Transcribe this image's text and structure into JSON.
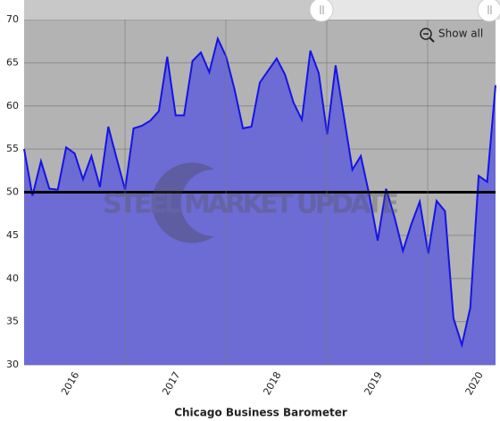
{
  "chart_data": {
    "type": "area",
    "title": "Chicago Business Barometer",
    "watermark": "STEEL MARKET UPDATE",
    "button": "Show all",
    "categories": [
      null,
      null,
      null,
      null,
      null,
      "2016",
      null,
      null,
      null,
      null,
      null,
      null,
      null,
      null,
      null,
      null,
      null,
      "2017",
      null,
      null,
      null,
      null,
      null,
      null,
      null,
      null,
      null,
      null,
      null,
      "2018",
      null,
      null,
      null,
      null,
      null,
      null,
      null,
      null,
      null,
      null,
      null,
      "2019",
      null,
      null,
      null,
      null,
      null,
      null,
      null,
      null,
      null,
      null,
      null,
      "2020",
      null,
      null,
      null
    ],
    "values": [
      55,
      49.6,
      53.6,
      50.4,
      50.3,
      55.2,
      54.5,
      51.5,
      54.2,
      50.6,
      57.6,
      53.9,
      50.3,
      57.4,
      57.7,
      58.3,
      59.4,
      65.7,
      58.9,
      58.9,
      65.2,
      66.2,
      63.9,
      67.8,
      65.7,
      61.9,
      57.4,
      57.6,
      62.7,
      64.1,
      65.5,
      63.6,
      60.4,
      58.4,
      66.4,
      63.8,
      56.7,
      64.7,
      58.7,
      52.6,
      54.2,
      49.7,
      44.4,
      50.4,
      47.1,
      43.2,
      46.3,
      48.9,
      42.9,
      49.0,
      47.8,
      35.4,
      32.3,
      36.6,
      51.9,
      51.2,
      62.4
    ],
    "color": "#1414e6",
    "fill": "#6d6bd4",
    "reference_line": 50,
    "ylim": [
      30,
      70
    ],
    "yticks": [
      30,
      35,
      40,
      45,
      50,
      55,
      60,
      65,
      70
    ],
    "grid": true
  }
}
